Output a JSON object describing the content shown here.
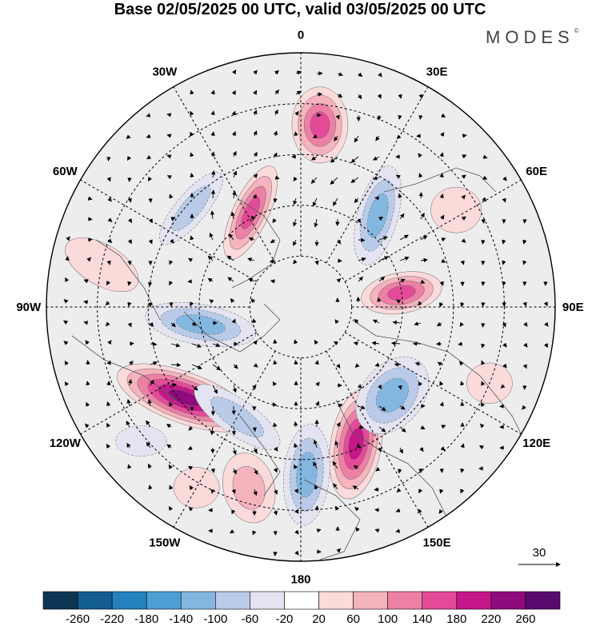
{
  "title": "Base 02/05/2025 00 UTC, valid 03/05/2025 00 UTC",
  "logo": "MODES",
  "logo_mark": "©",
  "longitude_labels": [
    {
      "lon": "180",
      "angle": 180
    },
    {
      "lon": "150E",
      "angle": 150
    },
    {
      "lon": "120E",
      "angle": 120
    },
    {
      "lon": "90E",
      "angle": 90
    },
    {
      "lon": "60E",
      "angle": 60
    },
    {
      "lon": "30E",
      "angle": 30
    },
    {
      "lon": "0",
      "angle": 0
    },
    {
      "lon": "30W",
      "angle": -30
    },
    {
      "lon": "60W",
      "angle": -60
    },
    {
      "lon": "90W",
      "angle": -90
    },
    {
      "lon": "120W",
      "angle": -120
    },
    {
      "lon": "150W",
      "angle": -150
    }
  ],
  "latitude_circles": [
    0.2,
    0.4,
    0.6,
    0.8
  ],
  "anomaly_blobs": [
    {
      "r": 0.58,
      "a": 158,
      "sx": 0.1,
      "sy": 0.22,
      "rot": 10,
      "value": 220
    },
    {
      "r": 0.66,
      "a": 178,
      "sx": 0.09,
      "sy": 0.2,
      "rot": 5,
      "value": -140
    },
    {
      "r": 0.5,
      "a": 134,
      "sx": 0.12,
      "sy": 0.17,
      "rot": 40,
      "value": -120
    },
    {
      "r": 0.74,
      "a": 196,
      "sx": 0.1,
      "sy": 0.14,
      "rot": -15,
      "value": 80
    },
    {
      "r": 0.58,
      "a": 232,
      "sx": 0.28,
      "sy": 0.1,
      "rot": 20,
      "value": 240
    },
    {
      "r": 0.5,
      "a": 210,
      "sx": 0.2,
      "sy": 0.07,
      "rot": 35,
      "value": -100
    },
    {
      "r": 0.4,
      "a": 260,
      "sx": 0.22,
      "sy": 0.08,
      "rot": 10,
      "value": -120
    },
    {
      "r": 0.4,
      "a": 82,
      "sx": 0.16,
      "sy": 0.08,
      "rot": -10,
      "value": 170
    },
    {
      "r": 0.47,
      "a": 40,
      "sx": 0.08,
      "sy": 0.2,
      "rot": 15,
      "value": -140
    },
    {
      "r": 0.72,
      "a": 6,
      "sx": 0.11,
      "sy": 0.15,
      "rot": 0,
      "value": 160
    },
    {
      "r": 0.42,
      "a": -28,
      "sx": 0.07,
      "sy": 0.2,
      "rot": 25,
      "value": 170
    },
    {
      "r": 0.58,
      "a": -48,
      "sx": 0.06,
      "sy": 0.18,
      "rot": 40,
      "value": -90
    },
    {
      "r": 0.8,
      "a": -78,
      "sx": 0.16,
      "sy": 0.08,
      "rot": 30,
      "value": 60
    },
    {
      "r": 0.72,
      "a": 58,
      "sx": 0.1,
      "sy": 0.09,
      "rot": 0,
      "value": 60
    },
    {
      "r": 0.8,
      "a": 112,
      "sx": 0.09,
      "sy": 0.08,
      "rot": 0,
      "value": 40
    },
    {
      "r": 0.82,
      "a": -150,
      "sx": 0.09,
      "sy": 0.08,
      "rot": 0,
      "value": 60
    },
    {
      "r": 0.82,
      "a": 230,
      "sx": 0.1,
      "sy": 0.06,
      "rot": 0,
      "value": -40
    }
  ],
  "vector_reference": {
    "label": "30"
  },
  "colorbar": {
    "colors": [
      "#0d3655",
      "#125d8f",
      "#2481bd",
      "#4d9fd3",
      "#83b7e0",
      "#b9cbe8",
      "#e3e3f1",
      "#ffffff",
      "#fbdada",
      "#f5b3bd",
      "#ee80a6",
      "#e54a98",
      "#c5168a",
      "#8e0a7d",
      "#580a6e"
    ],
    "labels": [
      "-260",
      "-220",
      "-180",
      "-140",
      "-100",
      "-60",
      "-20",
      "20",
      "60",
      "100",
      "140",
      "180",
      "220",
      "260"
    ]
  }
}
